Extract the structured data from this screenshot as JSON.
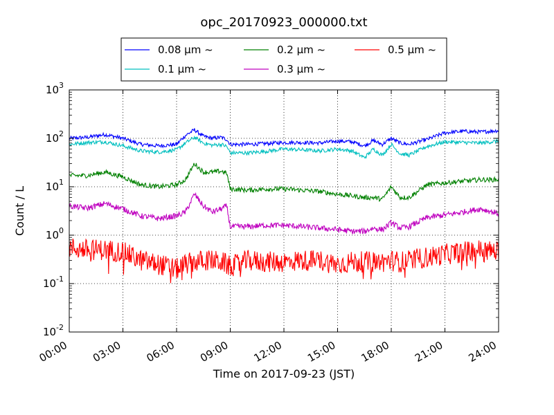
{
  "chart_data": {
    "type": "line",
    "title": "opc_20170923_000000.txt",
    "xlabel": "Time on 2017-09-23 (JST)",
    "ylabel": "Count / L",
    "yscale": "log",
    "ylim": [
      0.01,
      1000
    ],
    "xlim_hours": [
      0,
      24
    ],
    "grid": true,
    "legend_position": "top-center",
    "x_tick_labels": [
      "00:00",
      "03:00",
      "06:00",
      "09:00",
      "12:00",
      "15:00",
      "18:00",
      "21:00",
      "24:00"
    ],
    "x_tick_hours": [
      0,
      3,
      6,
      9,
      12,
      15,
      18,
      21,
      24
    ],
    "y_tick_values": [
      0.01,
      0.1,
      1,
      10,
      100,
      1000
    ],
    "y_tick_base": "10",
    "y_tick_exponents": [
      "-2",
      "-1",
      "0",
      "1",
      "2",
      "3"
    ],
    "x_hours": [
      0,
      1,
      2,
      3,
      4,
      5,
      6,
      6.5,
      7,
      7.5,
      8,
      8.5,
      8.8,
      9,
      10,
      11,
      12,
      13,
      14,
      15,
      15.8,
      16.5,
      17,
      17.5,
      18,
      18.5,
      19,
      20,
      21,
      22,
      23,
      24
    ],
    "series": [
      {
        "name": "0.08 µm ~",
        "color": "#0000ff",
        "values": [
          100,
          105,
          120,
          100,
          75,
          70,
          75,
          115,
          150,
          110,
          100,
          105,
          95,
          75,
          75,
          78,
          82,
          82,
          80,
          88,
          85,
          70,
          90,
          75,
          100,
          80,
          75,
          95,
          130,
          140,
          135,
          145
        ]
      },
      {
        "name": "0.1 µm ~",
        "color": "#00bfbf",
        "values": [
          75,
          82,
          85,
          70,
          55,
          52,
          58,
          80,
          105,
          80,
          72,
          75,
          68,
          50,
          50,
          54,
          60,
          58,
          55,
          60,
          55,
          40,
          60,
          45,
          75,
          48,
          45,
          68,
          85,
          82,
          80,
          88
        ]
      },
      {
        "name": "0.2 µm ~",
        "color": "#008000",
        "values": [
          17,
          17,
          20,
          16,
          11,
          10,
          11,
          14,
          30,
          20,
          20,
          21,
          19,
          9,
          8.5,
          9,
          9,
          8.5,
          8,
          7,
          6.5,
          6,
          6,
          5.5,
          10,
          6,
          6,
          11,
          12,
          13,
          14,
          14
        ]
      },
      {
        "name": "0.3 µm ~",
        "color": "#bf00bf",
        "values": [
          4,
          3.6,
          4.5,
          3.5,
          2.5,
          2.2,
          2.5,
          3,
          7,
          4,
          3,
          3.5,
          4,
          1.5,
          1.5,
          1.6,
          1.6,
          1.5,
          1.4,
          1.3,
          1.2,
          1.2,
          1.4,
          1.3,
          1.8,
          1.4,
          1.5,
          2.3,
          2.6,
          3,
          3.5,
          2.8
        ]
      },
      {
        "name": "0.5 µm ~",
        "color": "#ff0000",
        "values": [
          0.55,
          0.5,
          0.5,
          0.45,
          0.3,
          0.25,
          0.2,
          0.25,
          0.28,
          0.3,
          0.3,
          0.28,
          0.25,
          0.22,
          0.3,
          0.28,
          0.28,
          0.3,
          0.3,
          0.25,
          0.28,
          0.28,
          0.28,
          0.28,
          0.3,
          0.28,
          0.3,
          0.35,
          0.4,
          0.45,
          0.5,
          0.45
        ]
      }
    ]
  }
}
